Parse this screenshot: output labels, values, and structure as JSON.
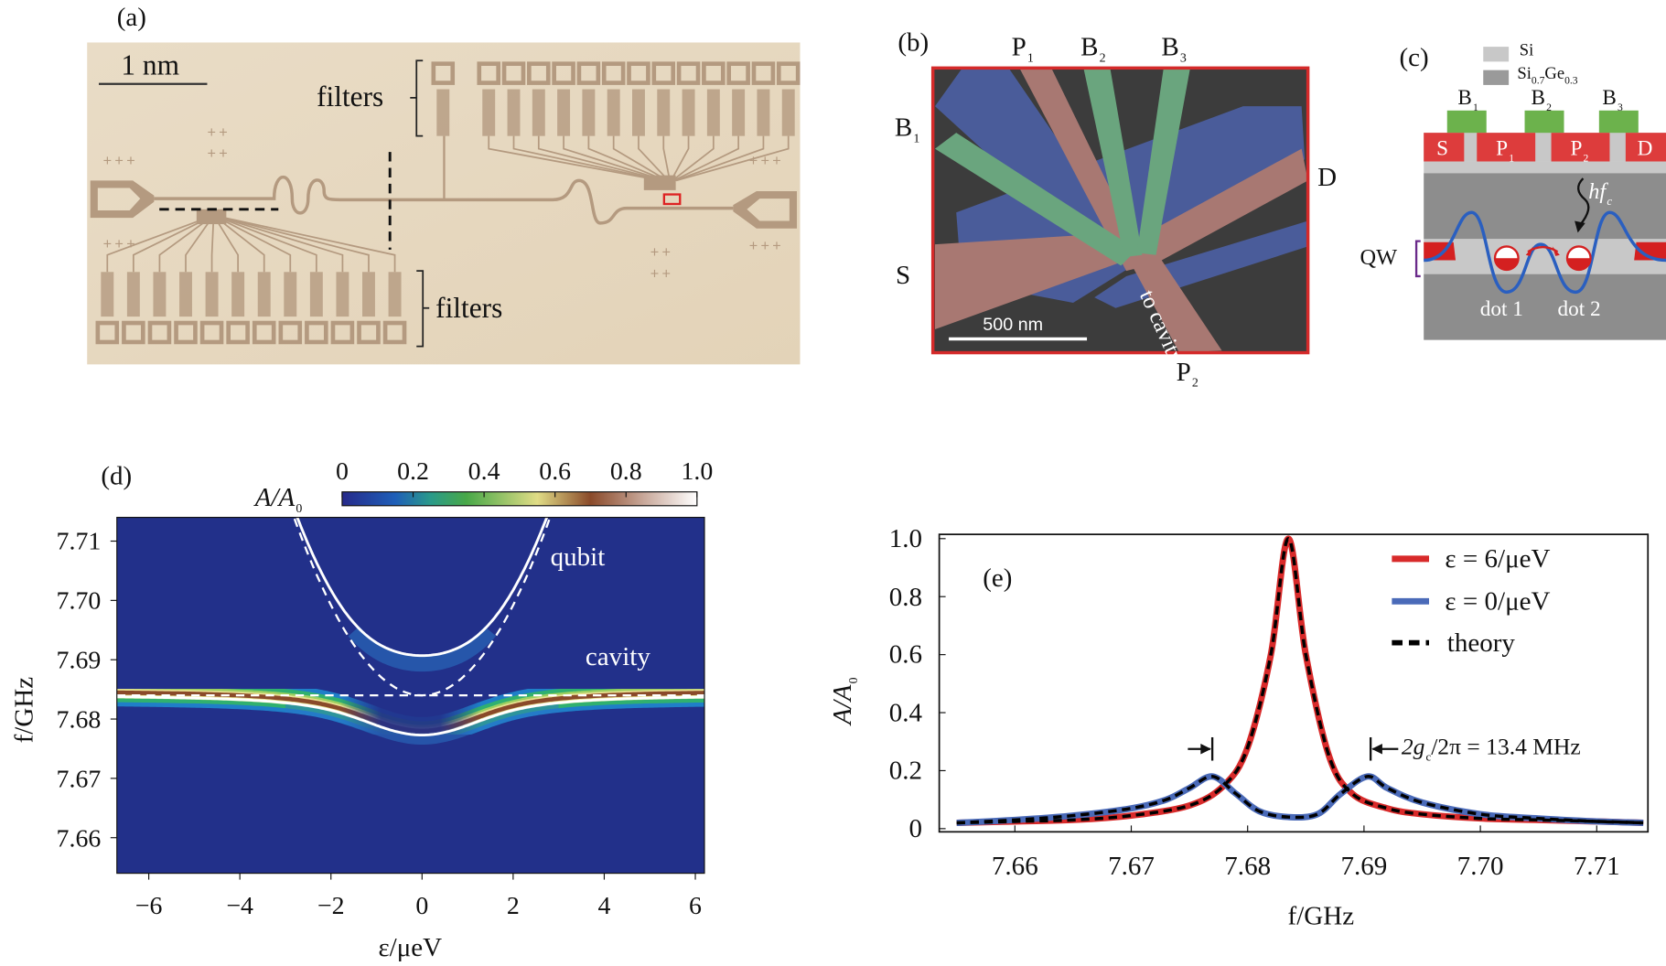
{
  "panel_a": {
    "label": "(a)",
    "scale_bar": "1 nm",
    "filters_top": "filters",
    "filters_bottom": "filters"
  },
  "panel_b": {
    "label": "(b)",
    "gates": {
      "P1": {
        "main": "P",
        "sub": "1"
      },
      "B2": {
        "main": "B",
        "sub": "2"
      },
      "B3": {
        "main": "B",
        "sub": "3"
      },
      "B1": {
        "main": "B",
        "sub": "1"
      },
      "P2": {
        "main": "P",
        "sub": "2"
      }
    },
    "drain": "D",
    "source": "S",
    "to_cavity": "to cavity",
    "scale_bar": "500 nm",
    "colors": {
      "blue_gate": "#4a5c9a",
      "pink_gate": "#a87872",
      "green_gate": "#6aa57e",
      "frame": "#d42a2a"
    }
  },
  "panel_c": {
    "label": "(c)",
    "legend": [
      {
        "main": "Si",
        "sub": "",
        "color": "#c8c8c8"
      },
      {
        "main": "Si",
        "sub": "0.7",
        "main2": "Ge",
        "sub2": "0.3",
        "color": "#9a9a9a"
      }
    ],
    "barrier_gates": [
      {
        "main": "B",
        "sub": "1"
      },
      {
        "main": "B",
        "sub": "2"
      },
      {
        "main": "B",
        "sub": "3"
      }
    ],
    "contacts": [
      {
        "main": "S",
        "sub": ""
      },
      {
        "main": "P",
        "sub": "1"
      },
      {
        "main": "P",
        "sub": "2"
      },
      {
        "main": "D",
        "sub": ""
      }
    ],
    "photon": {
      "main": "hf",
      "sub": "c"
    },
    "qw": "QW",
    "dot1": "dot 1",
    "dot2": "dot 2"
  },
  "panel_d": {
    "label": "(d)"
  },
  "panel_e": {
    "label": "(e)"
  },
  "chart_data": [
    {
      "type": "heatmap",
      "panel": "(d)",
      "colorbar": {
        "label": "A/A",
        "label_sub": "0",
        "ticks": [
          "0",
          "0.2",
          "0.4",
          "0.6",
          "0.8",
          "1.0"
        ],
        "range": [
          0,
          1
        ]
      },
      "xlabel": "ε/μeV",
      "ylabel": "f/GHz",
      "xticks": [
        "−6",
        "−4",
        "−2",
        "0",
        "2",
        "4",
        "6"
      ],
      "xtick_values": [
        -6,
        -4,
        -2,
        0,
        2,
        4,
        6
      ],
      "yticks": [
        "7.71",
        "7.70",
        "7.69",
        "7.68",
        "7.67",
        "7.66"
      ],
      "ytick_values": [
        7.71,
        7.7,
        7.69,
        7.68,
        7.67,
        7.66
      ],
      "xlim": [
        -6.7,
        6.2
      ],
      "ylim": [
        7.654,
        7.714
      ],
      "annotations": {
        "qubit": "qubit",
        "cavity": "cavity"
      },
      "cavity_frequency_GHz": 7.684,
      "qubit_min_frequency_GHz": 7.684,
      "detuning_to_GHz_per_ueV": 0.2418,
      "coupling_g_GHz": 0.0067
    },
    {
      "type": "line",
      "panel": "(e)",
      "xlabel": "f/GHz",
      "ylabel": "A/A",
      "ylabel_sub": "0",
      "xticks": [
        "7.66",
        "7.67",
        "7.68",
        "7.69",
        "7.70",
        "7.71"
      ],
      "xtick_values": [
        7.66,
        7.67,
        7.68,
        7.69,
        7.7,
        7.71
      ],
      "yticks": [
        "0",
        "0.2",
        "0.4",
        "0.6",
        "0.8",
        "1.0"
      ],
      "ytick_values": [
        0,
        0.2,
        0.4,
        0.6,
        0.8,
        1.0
      ],
      "xlim": [
        7.6535,
        7.7144
      ],
      "ylim": [
        0,
        1.02
      ],
      "legend_position": "top-right",
      "annotation": {
        "main": "2g",
        "sub": "c",
        "rest": "/2π = 13.4 MHz"
      },
      "series": [
        {
          "name": "ε = 6/μeV",
          "color": "#d82a2a",
          "x": [
            7.655,
            7.66,
            7.665,
            7.67,
            7.675,
            7.678,
            7.68,
            7.682,
            7.6835,
            7.685,
            7.687,
            7.689,
            7.692,
            7.695,
            7.7,
            7.705,
            7.71,
            7.714
          ],
          "y": [
            0.02,
            0.025,
            0.03,
            0.045,
            0.08,
            0.15,
            0.28,
            0.6,
            1.0,
            0.6,
            0.25,
            0.12,
            0.07,
            0.05,
            0.035,
            0.03,
            0.025,
            0.02
          ]
        },
        {
          "name": "ε = 0/μeV",
          "color": "#4a6ab8",
          "x": [
            7.655,
            7.66,
            7.665,
            7.67,
            7.673,
            7.675,
            7.677,
            7.679,
            7.681,
            7.6835,
            7.686,
            7.688,
            7.6903,
            7.692,
            7.695,
            7.7,
            7.705,
            7.71,
            7.714
          ],
          "y": [
            0.02,
            0.03,
            0.045,
            0.07,
            0.1,
            0.14,
            0.18,
            0.12,
            0.06,
            0.04,
            0.05,
            0.12,
            0.18,
            0.14,
            0.09,
            0.05,
            0.035,
            0.025,
            0.02
          ]
        },
        {
          "name": "theory",
          "color": "#000000",
          "dashed": true
        }
      ]
    }
  ]
}
